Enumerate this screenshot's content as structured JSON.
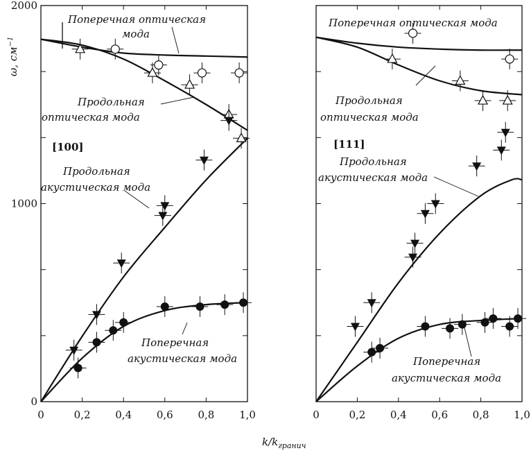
{
  "chart_data": [
    {
      "type": "scatter",
      "panel": "left",
      "direction": "[100]",
      "xlim": [
        0,
        1.0
      ],
      "ylim": [
        0,
        2000
      ],
      "xticks": [
        "0",
        "0,2",
        "0,4",
        "0,6",
        "0,8",
        "1,0"
      ],
      "yticks": [
        "0",
        "1000",
        "2000"
      ],
      "ylabel_prefix": "ω, см",
      "ylabel_sup": "−1",
      "curves": [
        {
          "name": "Поперечная оптическая мода",
          "x": [
            0,
            0.2,
            0.4,
            0.6,
            0.8,
            1.0
          ],
          "y": [
            1830,
            1790,
            1760,
            1750,
            1745,
            1740
          ]
        },
        {
          "name": "Продольная оптическая мода",
          "x": [
            0,
            0.2,
            0.4,
            0.6,
            0.8,
            1.0
          ],
          "y": [
            1830,
            1800,
            1730,
            1620,
            1500,
            1370
          ]
        },
        {
          "name": "Продольная акустическая мода",
          "x": [
            0,
            0.2,
            0.4,
            0.6,
            0.8,
            1.0
          ],
          "y": [
            0,
            330,
            630,
            880,
            1120,
            1330
          ]
        },
        {
          "name": "Поперечная акустическая мода",
          "x": [
            0,
            0.2,
            0.4,
            0.6,
            0.8,
            1.0
          ],
          "y": [
            0,
            220,
            380,
            460,
            490,
            500
          ]
        }
      ],
      "series": [
        {
          "marker": "circle-open",
          "x": [
            0.36,
            0.57,
            0.78,
            0.96
          ],
          "y": [
            1780,
            1700,
            1660,
            1660
          ]
        },
        {
          "marker": "triangle-open-up",
          "x": [
            0.19,
            0.54,
            0.72,
            0.91,
            0.97
          ],
          "y": [
            1780,
            1660,
            1600,
            1450,
            1330
          ]
        },
        {
          "marker": "triangle-filled-down",
          "x": [
            0.16,
            0.27,
            0.39,
            0.59,
            0.6,
            0.79,
            0.91
          ],
          "y": [
            260,
            440,
            700,
            940,
            990,
            1220,
            1420
          ]
        },
        {
          "marker": "circle-filled",
          "x": [
            0.18,
            0.27,
            0.35,
            0.4,
            0.6,
            0.77,
            0.89,
            0.98
          ],
          "y": [
            170,
            300,
            360,
            400,
            480,
            480,
            490,
            500
          ]
        }
      ],
      "annotations": [
        {
          "text": "Поперечная оптическая",
          "curve": 0
        },
        {
          "text": "мода"
        },
        {
          "text": "Продольная",
          "curve": 1
        },
        {
          "text": "оптическая мода"
        },
        {
          "text": "[100]"
        },
        {
          "text": "Продольная",
          "curve": 2
        },
        {
          "text": "акустическая мода"
        },
        {
          "text": "Поперечная",
          "curve": 3
        },
        {
          "text": "акустическая мода"
        }
      ]
    },
    {
      "type": "scatter",
      "panel": "right",
      "direction": "[111]",
      "xlim": [
        0,
        1.0
      ],
      "ylim": [
        0,
        2000
      ],
      "xticks": [
        "0",
        "0,2",
        "0,4",
        "0,6",
        "0,8",
        "1,0"
      ],
      "curves": [
        {
          "name": "Поперечная оптическая мода",
          "x": [
            0,
            0.2,
            0.4,
            0.6,
            0.8,
            1.0
          ],
          "y": [
            1840,
            1810,
            1790,
            1780,
            1775,
            1775
          ]
        },
        {
          "name": "Продольная оптическая мода",
          "x": [
            0,
            0.2,
            0.4,
            0.6,
            0.8,
            1.0
          ],
          "y": [
            1840,
            1790,
            1700,
            1620,
            1570,
            1550
          ]
        },
        {
          "name": "Продольная акустическая мода",
          "x": [
            0,
            0.2,
            0.4,
            0.6,
            0.8,
            0.95,
            1.0
          ],
          "y": [
            0,
            300,
            600,
            850,
            1040,
            1120,
            1120
          ]
        },
        {
          "name": "Поперечная акустическая мода",
          "x": [
            0,
            0.2,
            0.4,
            0.6,
            0.8,
            1.0
          ],
          "y": [
            0,
            180,
            320,
            390,
            410,
            420
          ]
        }
      ],
      "series": [
        {
          "marker": "circle-open",
          "x": [
            0.47,
            0.94
          ],
          "y": [
            1860,
            1730
          ]
        },
        {
          "marker": "triangle-open-up",
          "x": [
            0.37,
            0.7,
            0.81,
            0.93
          ],
          "y": [
            1730,
            1620,
            1520,
            1520
          ]
        },
        {
          "marker": "triangle-filled-down",
          "x": [
            0.19,
            0.27,
            0.47,
            0.48,
            0.53,
            0.58,
            0.78,
            0.9,
            0.92
          ],
          "y": [
            380,
            500,
            730,
            800,
            950,
            1000,
            1190,
            1270,
            1360
          ]
        },
        {
          "marker": "circle-filled",
          "x": [
            0.27,
            0.31,
            0.53,
            0.65,
            0.71,
            0.82,
            0.86,
            0.94,
            0.98
          ],
          "y": [
            250,
            270,
            380,
            370,
            390,
            400,
            420,
            380,
            420
          ]
        }
      ],
      "annotations": [
        {
          "text": "Поперечная оптическая мода",
          "curve": 0
        },
        {
          "text": "Продольная",
          "curve": 1
        },
        {
          "text": "оптическая мода"
        },
        {
          "text": "[111]"
        },
        {
          "text": "Продольная",
          "curve": 2
        },
        {
          "text": "акустическая мода"
        },
        {
          "text": "Поперечная",
          "curve": 3
        },
        {
          "text": "акустическая мода"
        }
      ]
    }
  ],
  "xlabel": {
    "base": "k/k",
    "sub": "гранич"
  }
}
